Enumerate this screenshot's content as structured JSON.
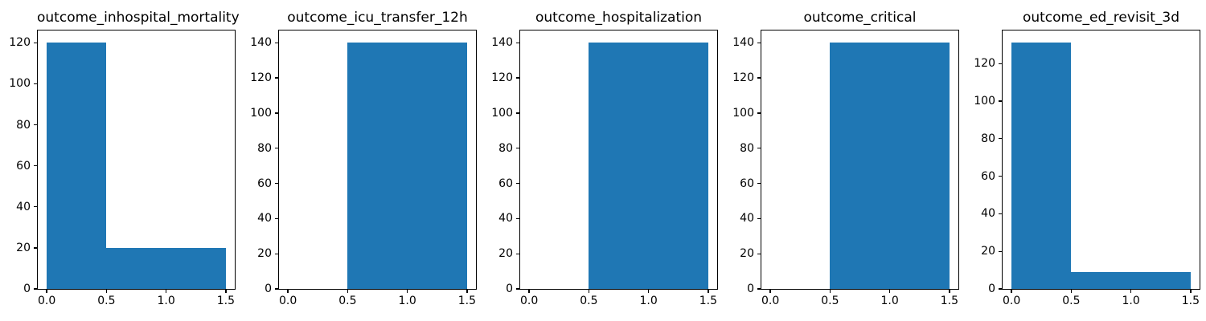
{
  "figure": {
    "background": "#ffffff",
    "text_color": "#000000",
    "spine_color": "#000000"
  },
  "chart_data": [
    {
      "type": "bar",
      "title": "outcome_inhospital_mortality",
      "xlabel": "",
      "ylabel": "",
      "bin_edges": [
        0,
        0.5,
        1.5
      ],
      "counts": [
        120,
        20
      ],
      "bar_color": "#1f77b4",
      "xlim": [
        -0.075,
        1.575
      ],
      "ylim": [
        0,
        126
      ],
      "xtick_values": [
        0,
        0.5,
        1.0,
        1.5
      ],
      "xtick_labels": [
        "0.0",
        "0.5",
        "1.0",
        "1.5"
      ],
      "ytick_values": [
        0,
        20,
        40,
        60,
        80,
        100,
        120
      ],
      "ytick_labels": [
        "0",
        "20",
        "40",
        "60",
        "80",
        "100",
        "120"
      ],
      "grid": false,
      "legend": null
    },
    {
      "type": "bar",
      "title": "outcome_icu_transfer_12h",
      "xlabel": "",
      "ylabel": "",
      "bin_edges": [
        0,
        0.5,
        1.5
      ],
      "counts": [
        0,
        140
      ],
      "bar_color": "#1f77b4",
      "xlim": [
        -0.075,
        1.575
      ],
      "ylim": [
        0,
        147
      ],
      "xtick_values": [
        0,
        0.5,
        1.0,
        1.5
      ],
      "xtick_labels": [
        "0.0",
        "0.5",
        "1.0",
        "1.5"
      ],
      "ytick_values": [
        0,
        20,
        40,
        60,
        80,
        100,
        120,
        140
      ],
      "ytick_labels": [
        "0",
        "20",
        "40",
        "60",
        "80",
        "100",
        "120",
        "140"
      ],
      "grid": false,
      "legend": null
    },
    {
      "type": "bar",
      "title": "outcome_hospitalization",
      "xlabel": "",
      "ylabel": "",
      "bin_edges": [
        0,
        0.5,
        1.5
      ],
      "counts": [
        0,
        140
      ],
      "bar_color": "#1f77b4",
      "xlim": [
        -0.075,
        1.575
      ],
      "ylim": [
        0,
        147
      ],
      "xtick_values": [
        0,
        0.5,
        1.0,
        1.5
      ],
      "xtick_labels": [
        "0.0",
        "0.5",
        "1.0",
        "1.5"
      ],
      "ytick_values": [
        0,
        20,
        40,
        60,
        80,
        100,
        120,
        140
      ],
      "ytick_labels": [
        "0",
        "20",
        "40",
        "60",
        "80",
        "100",
        "120",
        "140"
      ],
      "grid": false,
      "legend": null
    },
    {
      "type": "bar",
      "title": "outcome_critical",
      "xlabel": "",
      "ylabel": "",
      "bin_edges": [
        0,
        0.5,
        1.5
      ],
      "counts": [
        0,
        140
      ],
      "bar_color": "#1f77b4",
      "xlim": [
        -0.075,
        1.575
      ],
      "ylim": [
        0,
        147
      ],
      "xtick_values": [
        0,
        0.5,
        1.0,
        1.5
      ],
      "xtick_labels": [
        "0.0",
        "0.5",
        "1.0",
        "1.5"
      ],
      "ytick_values": [
        0,
        20,
        40,
        60,
        80,
        100,
        120,
        140
      ],
      "ytick_labels": [
        "0",
        "20",
        "40",
        "60",
        "80",
        "100",
        "120",
        "140"
      ],
      "grid": false,
      "legend": null
    },
    {
      "type": "bar",
      "title": "outcome_ed_revisit_3d",
      "xlabel": "",
      "ylabel": "",
      "bin_edges": [
        0,
        0.5,
        1.5
      ],
      "counts": [
        131,
        9
      ],
      "bar_color": "#1f77b4",
      "xlim": [
        -0.075,
        1.575
      ],
      "ylim": [
        0,
        137.6
      ],
      "xtick_values": [
        0,
        0.5,
        1.0,
        1.5
      ],
      "xtick_labels": [
        "0.0",
        "0.5",
        "1.0",
        "1.5"
      ],
      "ytick_values": [
        0,
        20,
        40,
        60,
        80,
        100,
        120
      ],
      "ytick_labels": [
        "0",
        "20",
        "40",
        "60",
        "80",
        "100",
        "120"
      ],
      "grid": false,
      "legend": null
    }
  ]
}
